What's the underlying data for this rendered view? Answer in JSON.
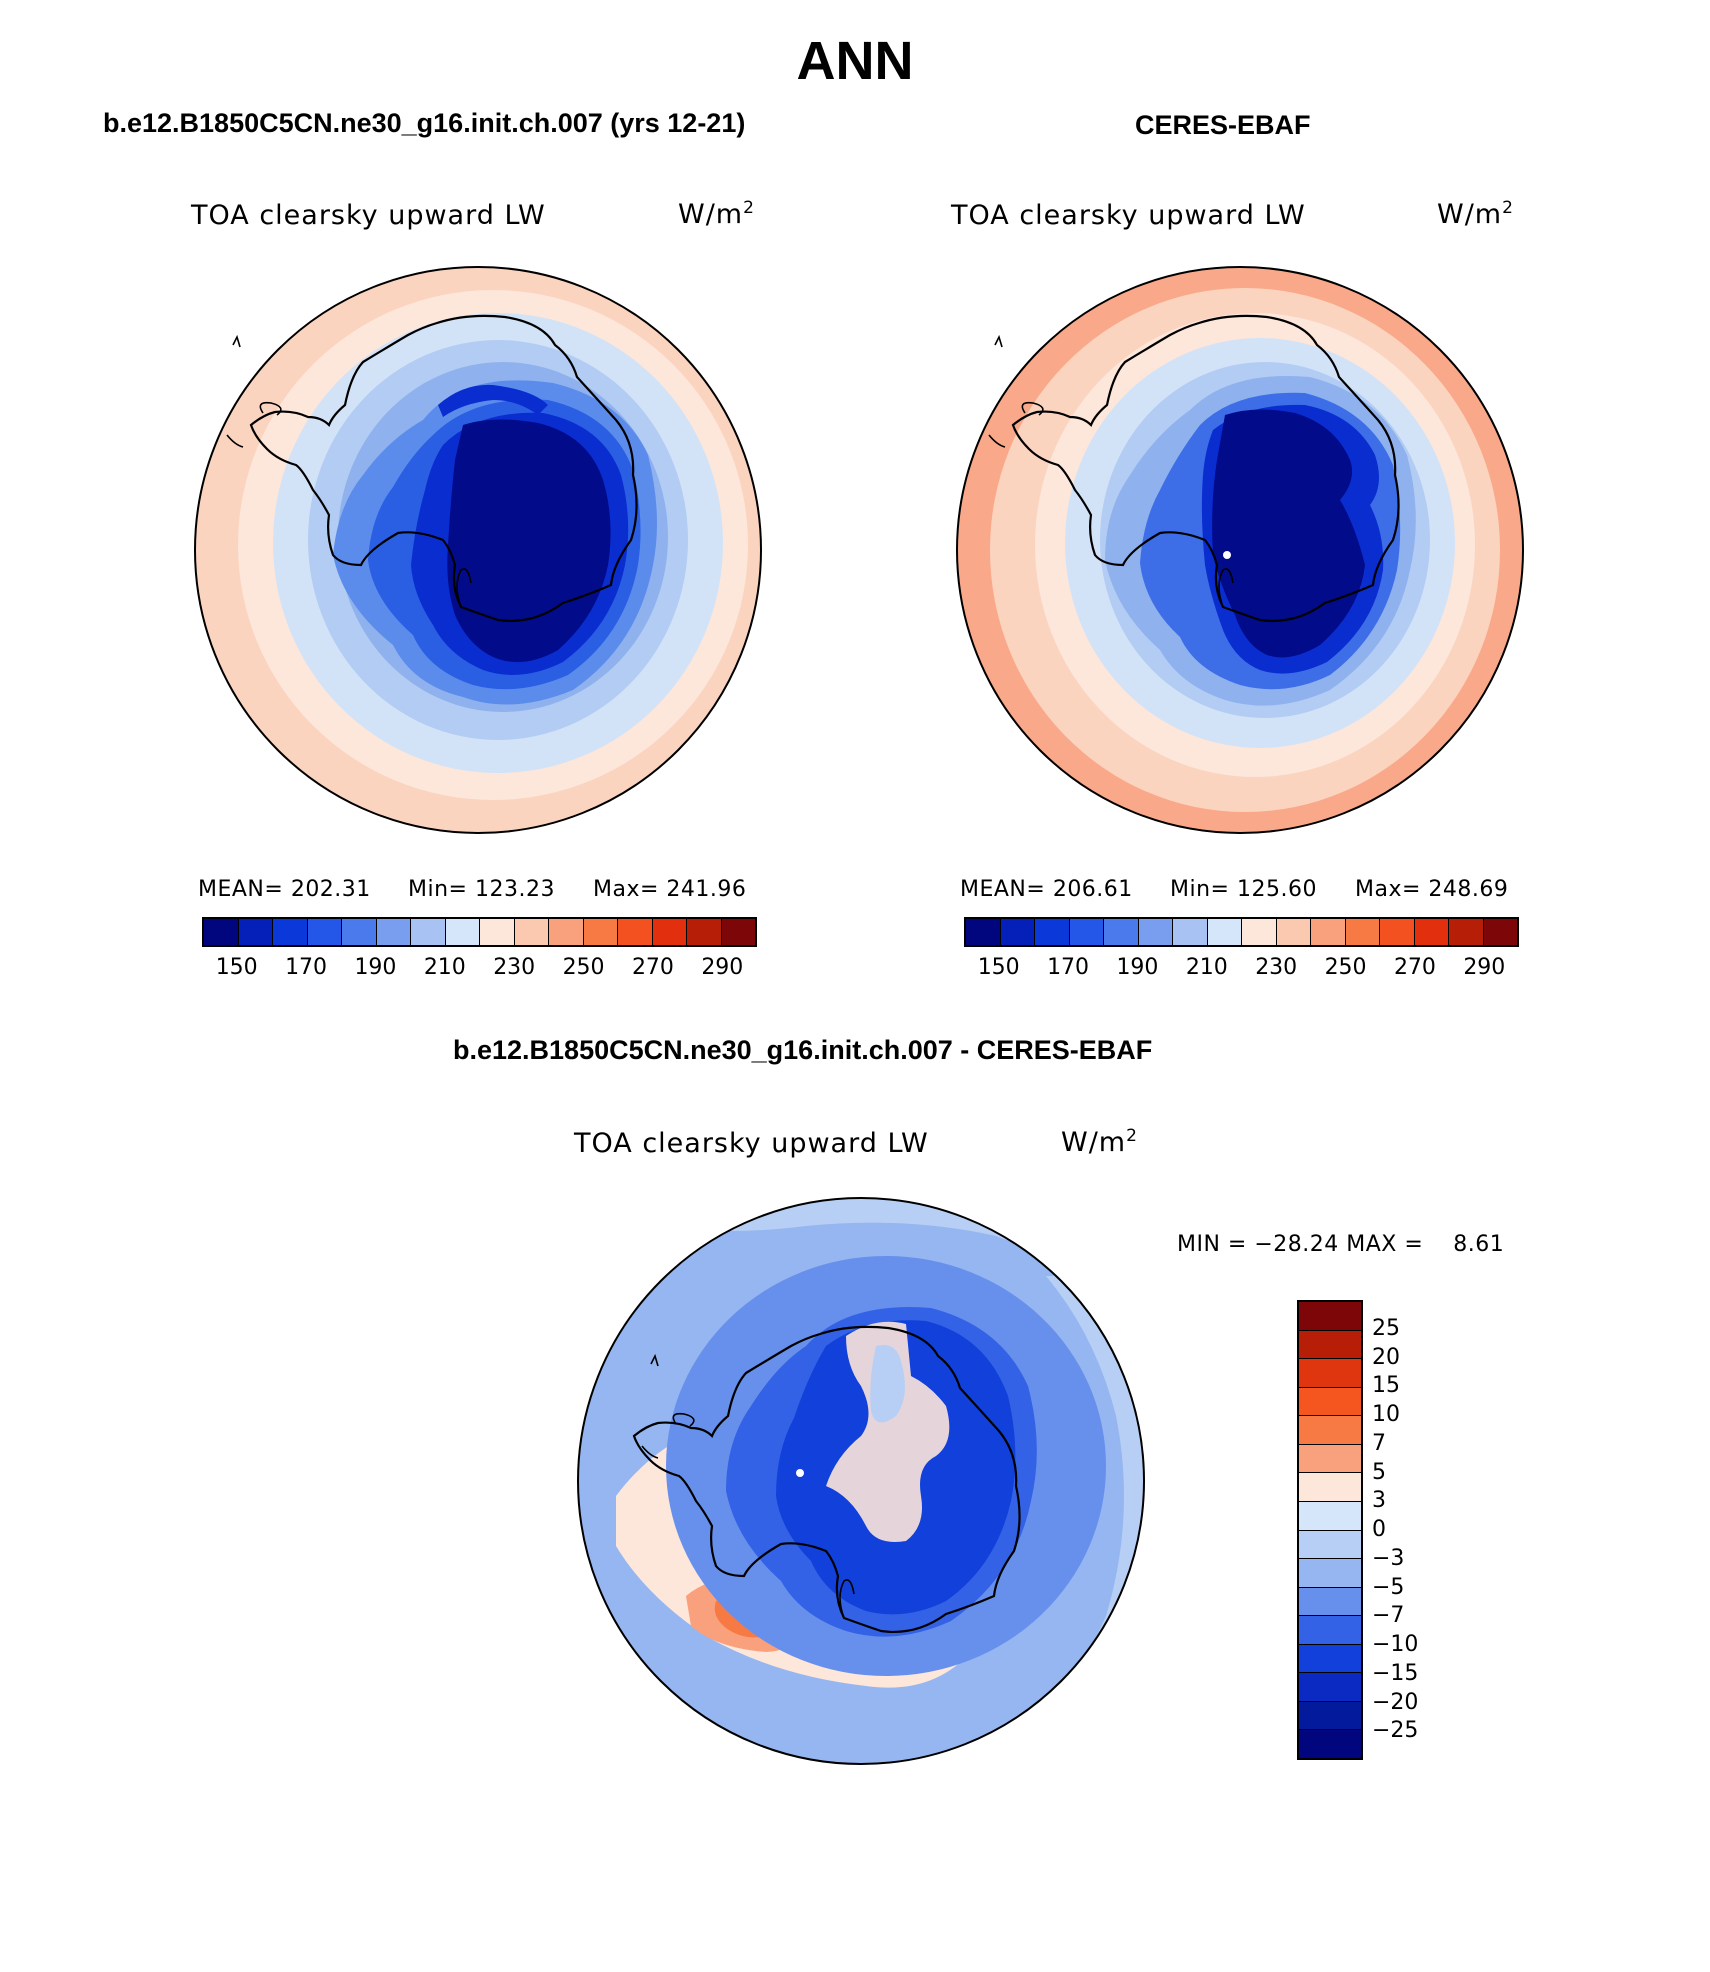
{
  "season": "ANN",
  "panels": [
    {
      "case_header": "b.e12.B1850C5CN.ne30_g16.init.ch.007 (yrs 12-21)",
      "title": "TOA clearsky upward LW",
      "units_base": "W/m",
      "units_exp": "2",
      "mean_text": "MEAN= 202.31",
      "min_text": "Min= 123.23",
      "max_text": "Max= 241.96",
      "ring_colors": [
        "#fbd4c0",
        "#fde6da",
        "#d2e3f8",
        "#b3ccf3",
        "#8fb2ee",
        "#5b8cec",
        "#2a5fe4",
        "#0a2dd0",
        "#020b8a"
      ]
    },
    {
      "case_header": "CERES-EBAF",
      "title": "TOA clearsky upward LW",
      "units_base": "W/m",
      "units_exp": "2",
      "mean_text": "MEAN= 206.61",
      "min_text": "Min= 125.60",
      "max_text": "Max= 248.69",
      "ring_colors": [
        "#f9a98a",
        "#fbd4c0",
        "#fde6da",
        "#d2e3f8",
        "#b3ccf3",
        "#8fb2ee",
        "#3d6ee8",
        "#0a2dd0",
        "#020b8a"
      ]
    }
  ],
  "colorbar": {
    "colors": [
      "#02067e",
      "#0520b8",
      "#0b38d9",
      "#2456e8",
      "#4a7aec",
      "#7a9eef",
      "#a8c2f3",
      "#d6e6fa",
      "#fde6da",
      "#fbc8b0",
      "#f9a07c",
      "#f77a44",
      "#f35220",
      "#e22f0d",
      "#b71e08",
      "#7d0608"
    ],
    "ticks": [
      "150",
      "170",
      "190",
      "210",
      "230",
      "250",
      "270",
      "290"
    ]
  },
  "diff": {
    "header": "b.e12.B1850C5CN.ne30_g16.init.ch.007 - CERES-EBAF",
    "title": "TOA clearsky upward LW",
    "units_base": "W/m",
    "units_exp": "2",
    "minmax_text": "MIN = −28.24 MAX =    8.61",
    "colorbar": {
      "colors": [
        "#7d0608",
        "#b71e08",
        "#e0360f",
        "#f5561f",
        "#f77a44",
        "#f9a07c",
        "#fde6da",
        "#d6e6fa",
        "#b7cff4",
        "#95b6f0",
        "#6790ec",
        "#3362e6",
        "#1140da",
        "#0a2ac2",
        "#031a9c",
        "#02067e"
      ],
      "ticks": [
        "25",
        "20",
        "15",
        "10",
        "7",
        "5",
        "3",
        "0",
        "−3",
        "−5",
        "−7",
        "−10",
        "−15",
        "−20",
        "−25"
      ]
    }
  }
}
